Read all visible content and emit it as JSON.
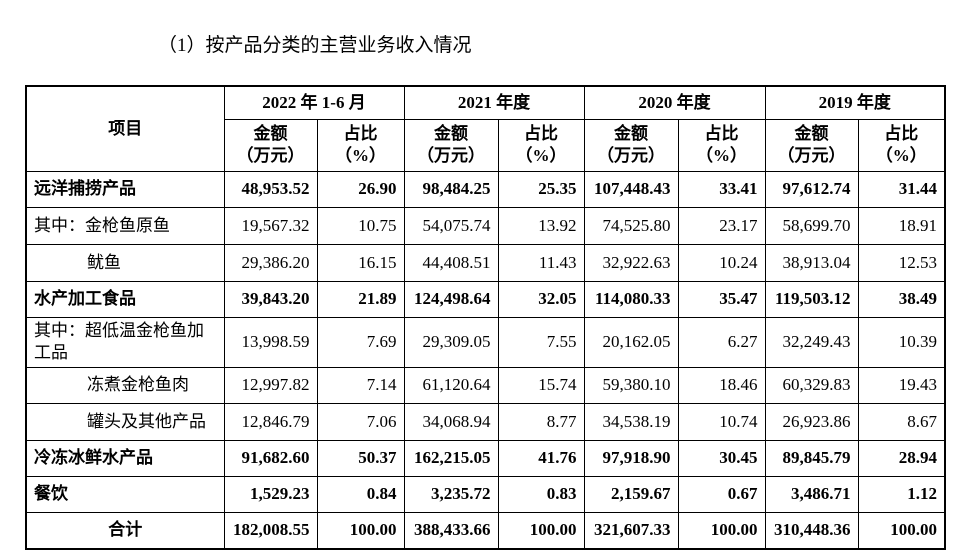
{
  "heading": "（1）按产品分类的主营业务收入情况",
  "table": {
    "item_header": "项目",
    "periods": [
      "2022 年 1-6 月",
      "2021 年度",
      "2020 年度",
      "2019 年度"
    ],
    "subheaders": [
      [
        "金额",
        "（万元）"
      ],
      [
        "占比",
        "（%）"
      ]
    ],
    "rows": [
      [
        "远洋捕捞产品",
        "48,953.52",
        "26.90",
        "98,484.25",
        "25.35",
        "107,448.43",
        "33.41",
        "97,612.74",
        "31.44"
      ],
      [
        "其中：金枪鱼原鱼",
        "19,567.32",
        "10.75",
        "54,075.74",
        "13.92",
        "74,525.80",
        "23.17",
        "58,699.70",
        "18.91"
      ],
      [
        "鱿鱼",
        "29,386.20",
        "16.15",
        "44,408.51",
        "11.43",
        "32,922.63",
        "10.24",
        "38,913.04",
        "12.53"
      ],
      [
        "水产加工食品",
        "39,843.20",
        "21.89",
        "124,498.64",
        "32.05",
        "114,080.33",
        "35.47",
        "119,503.12",
        "38.49"
      ],
      [
        "其中：超低温金枪鱼加工品",
        "13,998.59",
        "7.69",
        "29,309.05",
        "7.55",
        "20,162.05",
        "6.27",
        "32,249.43",
        "10.39"
      ],
      [
        "冻煮金枪鱼肉",
        "12,997.82",
        "7.14",
        "61,120.64",
        "15.74",
        "59,380.10",
        "18.46",
        "60,329.83",
        "19.43"
      ],
      [
        "罐头及其他产品",
        "12,846.79",
        "7.06",
        "34,068.94",
        "8.77",
        "34,538.19",
        "10.74",
        "26,923.86",
        "8.67"
      ],
      [
        "冷冻冰鲜水产品",
        "91,682.60",
        "50.37",
        "162,215.05",
        "41.76",
        "97,918.90",
        "30.45",
        "89,845.79",
        "28.94"
      ],
      [
        "餐饮",
        "1,529.23",
        "0.84",
        "3,235.72",
        "0.83",
        "2,159.67",
        "0.67",
        "3,486.71",
        "1.12"
      ],
      [
        "合计",
        "182,008.55",
        "100.00",
        "388,433.66",
        "100.00",
        "321,607.33",
        "100.00",
        "310,448.36",
        "100.00"
      ]
    ]
  }
}
